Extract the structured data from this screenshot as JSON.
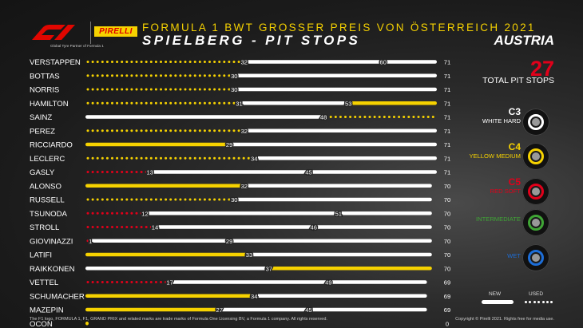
{
  "header": {
    "brand_pirelli": "PIRELLI",
    "tagline": "Global Tyre Partner of Formula 1",
    "title_line1": "FORMULA 1 BWT GROSSER PREIS VON ÖSTERREICH 2021",
    "title_line2": "SPIELBERG  -  PIT STOPS",
    "country": "AUSTRIA"
  },
  "summary": {
    "total_pit_stops": "27",
    "total_label": "TOTAL PIT STOPS"
  },
  "compounds": [
    {
      "code": "C3",
      "name": "WHITE HARD",
      "color": "#ffffff"
    },
    {
      "code": "C4",
      "name": "YELLOW MEDIUM",
      "color": "#f6d200"
    },
    {
      "code": "C5",
      "name": "RED SOFT",
      "color": "#e1001a"
    },
    {
      "code": "",
      "name": "INTERMEDIATE",
      "color": "#3fa535"
    },
    {
      "code": "",
      "name": "WET",
      "color": "#1d6ed8"
    }
  ],
  "legend": {
    "new": "NEW",
    "used": "USED"
  },
  "footer": {
    "left": "The F1 logo, FORMULA 1, F1, GRAND PRIX and related marks are trade marks of Formula One Licensing BV, a Formula 1 company. All rights reserved.",
    "right": "Copyright © Pirelli 2021. Rights free for media use."
  },
  "chart_data": {
    "type": "bar",
    "orientation": "horizontal-stacked",
    "x_unit": "laps",
    "xlim": [
      0,
      71
    ],
    "compound_colors": {
      "hard": "#ffffff",
      "medium": "#f6d200",
      "soft": "#e1001a"
    },
    "drivers": [
      {
        "name": "VERSTAPPEN",
        "total": "71",
        "stints": [
          {
            "c": "medium",
            "used": true,
            "end": 32
          },
          {
            "c": "hard",
            "used": false,
            "end": 60
          },
          {
            "c": "hard",
            "used": false,
            "end": 71
          }
        ],
        "labels": [
          "32",
          "60"
        ]
      },
      {
        "name": "BOTTAS",
        "total": "71",
        "stints": [
          {
            "c": "medium",
            "used": true,
            "end": 30
          },
          {
            "c": "hard",
            "used": false,
            "end": 71
          }
        ],
        "labels": [
          "30"
        ]
      },
      {
        "name": "NORRIS",
        "total": "71",
        "stints": [
          {
            "c": "medium",
            "used": true,
            "end": 30
          },
          {
            "c": "hard",
            "used": false,
            "end": 71
          }
        ],
        "labels": [
          "30"
        ]
      },
      {
        "name": "HAMILTON",
        "total": "71",
        "stints": [
          {
            "c": "medium",
            "used": true,
            "end": 31
          },
          {
            "c": "hard",
            "used": false,
            "end": 53
          },
          {
            "c": "medium",
            "used": false,
            "end": 71
          }
        ],
        "labels": [
          "31",
          "53"
        ]
      },
      {
        "name": "SAINZ",
        "total": "71",
        "stints": [
          {
            "c": "hard",
            "used": false,
            "end": 48
          },
          {
            "c": "medium",
            "used": true,
            "end": 71
          }
        ],
        "labels": [
          "48"
        ]
      },
      {
        "name": "PEREZ",
        "total": "71",
        "stints": [
          {
            "c": "medium",
            "used": true,
            "end": 32
          },
          {
            "c": "hard",
            "used": false,
            "end": 71
          }
        ],
        "labels": [
          "32"
        ]
      },
      {
        "name": "RICCIARDO",
        "total": "71",
        "stints": [
          {
            "c": "medium",
            "used": false,
            "end": 29
          },
          {
            "c": "hard",
            "used": false,
            "end": 71
          }
        ],
        "labels": [
          "29"
        ]
      },
      {
        "name": "LECLERC",
        "total": "71",
        "stints": [
          {
            "c": "medium",
            "used": true,
            "end": 34
          },
          {
            "c": "hard",
            "used": false,
            "end": 71
          }
        ],
        "labels": [
          "34"
        ]
      },
      {
        "name": "GASLY",
        "total": "71",
        "stints": [
          {
            "c": "soft",
            "used": true,
            "end": 13
          },
          {
            "c": "hard",
            "used": false,
            "end": 45
          },
          {
            "c": "hard",
            "used": false,
            "end": 71
          }
        ],
        "labels": [
          "13",
          "45"
        ]
      },
      {
        "name": "ALONSO",
        "total": "70",
        "stints": [
          {
            "c": "medium",
            "used": false,
            "end": 32
          },
          {
            "c": "hard",
            "used": false,
            "end": 70
          }
        ],
        "labels": [
          "32"
        ]
      },
      {
        "name": "RUSSELL",
        "total": "70",
        "stints": [
          {
            "c": "medium",
            "used": true,
            "end": 30
          },
          {
            "c": "hard",
            "used": false,
            "end": 70
          }
        ],
        "labels": [
          "30"
        ]
      },
      {
        "name": "TSUNODA",
        "total": "70",
        "stints": [
          {
            "c": "soft",
            "used": true,
            "end": 12
          },
          {
            "c": "hard",
            "used": false,
            "end": 51
          },
          {
            "c": "hard",
            "used": false,
            "end": 70
          }
        ],
        "labels": [
          "12",
          "51"
        ]
      },
      {
        "name": "STROLL",
        "total": "70",
        "stints": [
          {
            "c": "soft",
            "used": true,
            "end": 14
          },
          {
            "c": "hard",
            "used": false,
            "end": 46
          },
          {
            "c": "hard",
            "used": false,
            "end": 70
          }
        ],
        "labels": [
          "14",
          "46"
        ]
      },
      {
        "name": "GIOVINAZZI",
        "total": "70",
        "stints": [
          {
            "c": "soft",
            "used": true,
            "end": 1
          },
          {
            "c": "hard",
            "used": false,
            "end": 29
          },
          {
            "c": "hard",
            "used": false,
            "end": 70
          }
        ],
        "labels": [
          "1",
          "29"
        ]
      },
      {
        "name": "LATIFI",
        "total": "70",
        "stints": [
          {
            "c": "medium",
            "used": false,
            "end": 33
          },
          {
            "c": "hard",
            "used": false,
            "end": 70
          }
        ],
        "labels": [
          "33"
        ]
      },
      {
        "name": "RAIKKONEN",
        "total": "70",
        "stints": [
          {
            "c": "hard",
            "used": false,
            "end": 37
          },
          {
            "c": "medium",
            "used": false,
            "end": 70
          }
        ],
        "labels": [
          "37"
        ]
      },
      {
        "name": "VETTEL",
        "total": "69",
        "stints": [
          {
            "c": "soft",
            "used": true,
            "end": 17
          },
          {
            "c": "hard",
            "used": false,
            "end": 49
          },
          {
            "c": "hard",
            "used": false,
            "end": 69
          }
        ],
        "labels": [
          "17",
          "49"
        ]
      },
      {
        "name": "SCHUMACHER",
        "total": "69",
        "stints": [
          {
            "c": "medium",
            "used": false,
            "end": 34
          },
          {
            "c": "hard",
            "used": false,
            "end": 69
          }
        ],
        "labels": [
          "34"
        ]
      },
      {
        "name": "MAZEPIN",
        "total": "69",
        "stints": [
          {
            "c": "medium",
            "used": false,
            "end": 27
          },
          {
            "c": "hard",
            "used": false,
            "end": 45
          },
          {
            "c": "hard",
            "used": false,
            "end": 69
          }
        ],
        "labels": [
          "27",
          "45"
        ]
      },
      {
        "name": "OCON",
        "total": "0",
        "stints": [
          {
            "c": "medium",
            "used": false,
            "end": 0.8
          }
        ],
        "labels": []
      }
    ]
  }
}
